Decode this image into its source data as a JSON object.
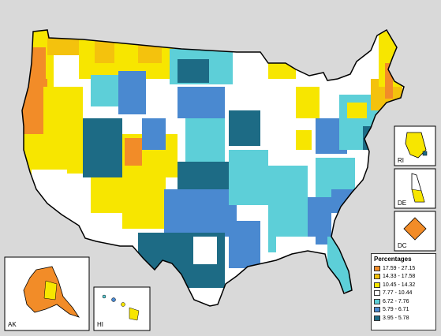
{
  "insets": {
    "ak": "AK",
    "hi": "HI",
    "ri": "RI",
    "de": "DE",
    "dc": "DC"
  },
  "legend": {
    "title": "Percentages",
    "items": [
      {
        "label": "17.59 - 27.15",
        "color": "#f28c28"
      },
      {
        "label": "14.33 - 17.58",
        "color": "#f4c20d"
      },
      {
        "label": "10.45 - 14.32",
        "color": "#f7e600"
      },
      {
        "label": "7.77 - 10.44",
        "color": "#ffffff"
      },
      {
        "label": "6.72 - 7.76",
        "color": "#5dcfd8"
      },
      {
        "label": "5.79 - 6.71",
        "color": "#4a89d0"
      },
      {
        "label": "3.95 - 5.78",
        "color": "#1d6b85"
      }
    ]
  }
}
